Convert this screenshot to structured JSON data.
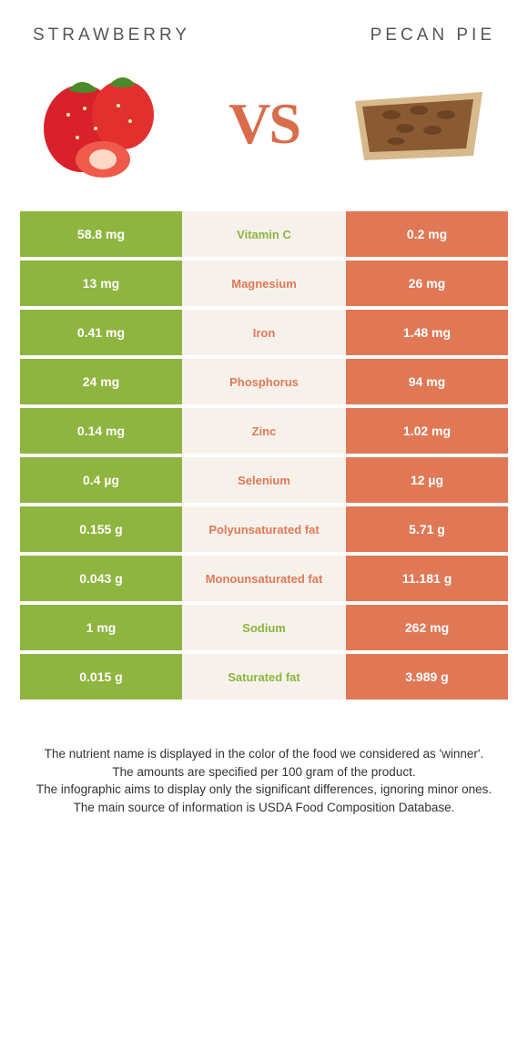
{
  "left_food": "STRAWBERRY",
  "right_food": "PECAN PIE",
  "vs": "VS",
  "colors": {
    "strawberry": "#8eb53f",
    "pecan": "#e07856",
    "mid_bg": "#f6f2eb"
  },
  "rows": [
    {
      "left": "58.8 mg",
      "label": "Vitamin C",
      "right": "0.2 mg",
      "winner": "left"
    },
    {
      "left": "13 mg",
      "label": "Magnesium",
      "right": "26 mg",
      "winner": "right"
    },
    {
      "left": "0.41 mg",
      "label": "Iron",
      "right": "1.48 mg",
      "winner": "right"
    },
    {
      "left": "24 mg",
      "label": "Phosphorus",
      "right": "94 mg",
      "winner": "right"
    },
    {
      "left": "0.14 mg",
      "label": "Zinc",
      "right": "1.02 mg",
      "winner": "right"
    },
    {
      "left": "0.4 µg",
      "label": "Selenium",
      "right": "12 µg",
      "winner": "right"
    },
    {
      "left": "0.155 g",
      "label": "Polyunsaturated fat",
      "right": "5.71 g",
      "winner": "right"
    },
    {
      "left": "0.043 g",
      "label": "Monounsaturated fat",
      "right": "11.181 g",
      "winner": "right"
    },
    {
      "left": "1 mg",
      "label": "Sodium",
      "right": "262 mg",
      "winner": "left"
    },
    {
      "left": "0.015 g",
      "label": "Saturated fat",
      "right": "3.989 g",
      "winner": "left"
    }
  ],
  "footer": [
    "The nutrient name is displayed in the color of the food we considered as 'winner'.",
    "The amounts are specified per 100 gram of the product.",
    "The infographic aims to display only the significant differences, ignoring minor ones.",
    "The main source of information is USDA Food Composition Database."
  ]
}
